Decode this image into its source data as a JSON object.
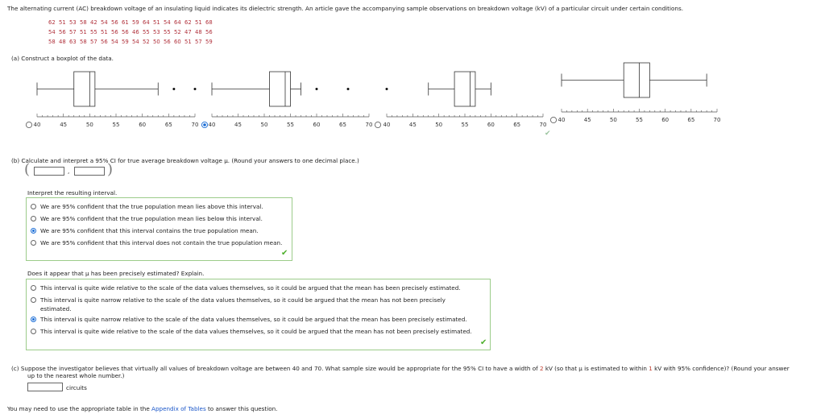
{
  "intro": "The alternating current (AC) breakdown voltage of an insulating liquid indicates its dielectric strength. An article gave the accompanying sample observations on breakdown voltage (kV) of a particular circuit under certain conditions.",
  "data_rows": [
    [
      "62",
      "51",
      "53",
      "58",
      "42",
      "54",
      "56",
      "61",
      "59",
      "64",
      "51",
      "54",
      "64",
      "62",
      "51",
      "68"
    ],
    [
      "54",
      "56",
      "57",
      "51",
      "55",
      "51",
      "56",
      "56",
      "46",
      "55",
      "53",
      "55",
      "52",
      "47",
      "48",
      "56"
    ],
    [
      "58",
      "48",
      "63",
      "58",
      "57",
      "56",
      "54",
      "59",
      "54",
      "52",
      "50",
      "56",
      "60",
      "51",
      "57",
      "59"
    ]
  ],
  "part_a": {
    "label": "(a)  Construct a boxplot of the data."
  },
  "boxplot_ticks": [
    "40",
    "45",
    "50",
    "55",
    "60",
    "65",
    "70"
  ],
  "boxplot_options": [
    {
      "id": "A",
      "selected": false,
      "q1": 47,
      "median": 50,
      "q3": 51,
      "whisker_low": 40,
      "whisker_high": 63,
      "outliers": [
        66,
        70
      ]
    },
    {
      "id": "B",
      "selected": true,
      "q1": 51,
      "median": 54,
      "q3": 55,
      "whisker_low": 40,
      "whisker_high": 57,
      "outliers": [
        60,
        66
      ]
    },
    {
      "id": "C",
      "selected": false,
      "q1": 53,
      "median": 56,
      "q3": 57,
      "whisker_low": 48,
      "whisker_high": 60,
      "outliers": [
        40
      ]
    },
    {
      "id": "D",
      "selected": false,
      "q1": 52,
      "median": 55,
      "q3": 57,
      "whisker_low": 40,
      "whisker_high": 68,
      "outliers": []
    }
  ],
  "part_b": {
    "label": "(b)  Calculate and interpret a 95% CI for true average breakdown voltage μ. (Round your answers to one decimal place.)",
    "ci_lower": "",
    "ci_upper": "",
    "comma": ",",
    "interpret_label": "Interpret the resulting interval.",
    "interpret_options": [
      {
        "text": "We are 95% confident that the true population mean lies above this interval.",
        "selected": false
      },
      {
        "text": "We are 95% confident that the true population mean lies below this interval.",
        "selected": false
      },
      {
        "text": "We are 95% confident that this interval contains the true population mean.",
        "selected": true
      },
      {
        "text": "We are 95% confident that this interval does not contain the true population mean.",
        "selected": false
      }
    ],
    "precise_label": "Does it appear that μ has been precisely estimated? Explain.",
    "precise_options": [
      {
        "lines": [
          "This interval is quite wide relative to the scale of the data values themselves, so it could be argued that the mean has been precisely estimated."
        ],
        "selected": false
      },
      {
        "lines": [
          "This interval is quite narrow relative to the scale of the data values themselves, so it could be argued that the mean has not been precisely",
          "estimated."
        ],
        "selected": false
      },
      {
        "lines": [
          "This interval is quite narrow relative to the scale of the data values themselves, so it could be argued that the mean has been precisely estimated."
        ],
        "selected": true
      },
      {
        "lines": [
          "This interval is quite wide relative to the scale of the data values themselves, so it could be argued that the mean has not been precisely estimated."
        ],
        "selected": false
      }
    ]
  },
  "part_c": {
    "prefix": "(c)  Suppose the investigator believes that virtually all values of breakdown voltage are between 40 and 70. What sample size would be appropriate for the 95% CI to have a width of ",
    "width_value": "2",
    "middle": " kV (so that μ is estimated to within ",
    "within_value": "1",
    "suffix": " kV with 95% confidence)? (Round your answer",
    "line2": "up to the nearest whole number.)",
    "answer_value": "",
    "unit": "circuits"
  },
  "footer": {
    "prefix": "You may need to use the appropriate table in the ",
    "link": "Appendix of Tables",
    "suffix": " to answer this question."
  },
  "colors": {
    "accent": "#1a6dd6",
    "check": "#4caf2a",
    "data_red": "#b0303a",
    "box_border": "#9ccc8a"
  }
}
